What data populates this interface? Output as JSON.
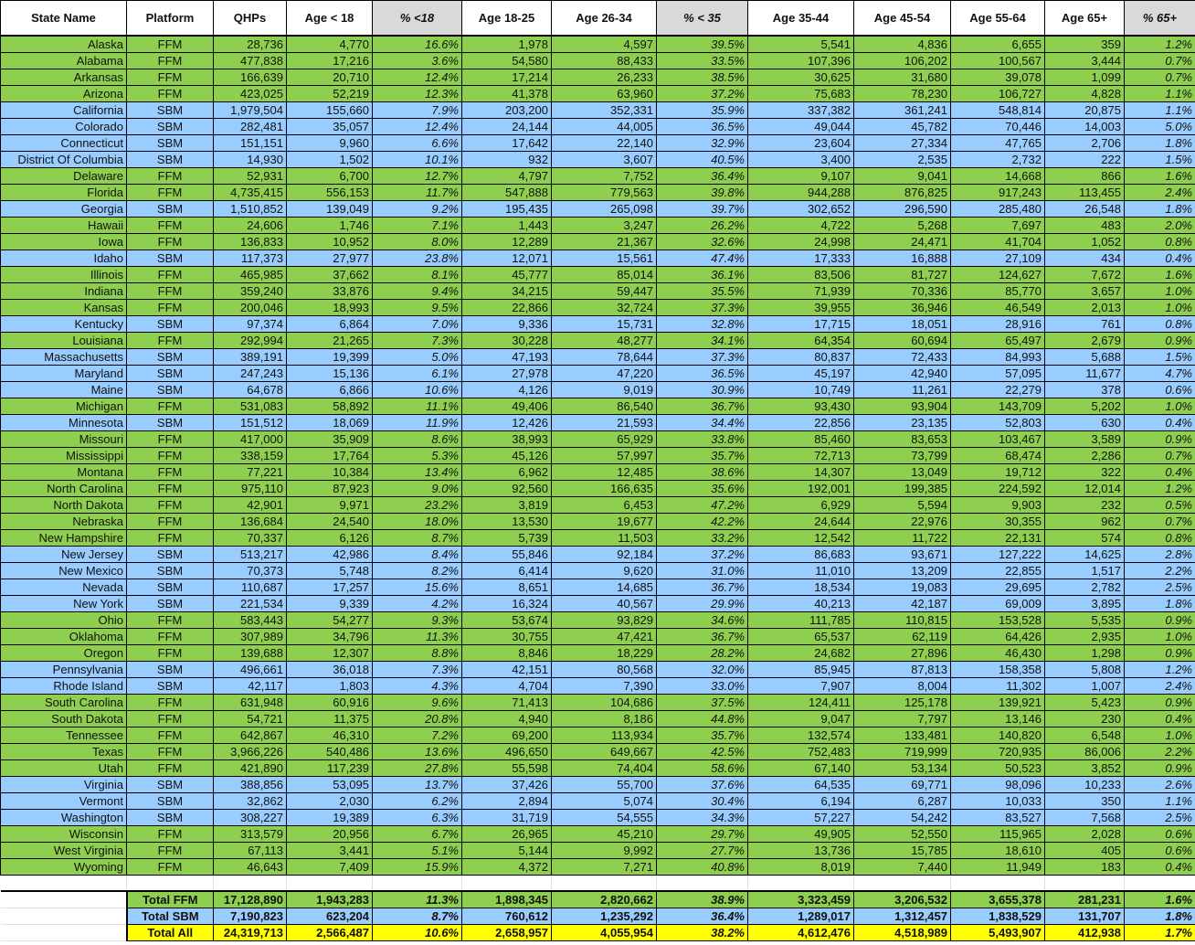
{
  "colors": {
    "FFM": "#8fcf4f",
    "SBM": "#99ccff",
    "total_all": "#ffff00",
    "pct_header": "#d9d9d9"
  },
  "headers": [
    "State Name",
    "Platform",
    "QHPs",
    "Age < 18",
    "% <18",
    "Age 18-25",
    "Age 26-34",
    "% < 35",
    "Age 35-44",
    "Age 45-54",
    "Age 55-64",
    "Age 65+",
    "% 65+"
  ],
  "rows": [
    [
      "Alaska",
      "FFM",
      "28,736",
      "4,770",
      "16.6%",
      "1,978",
      "4,597",
      "39.5%",
      "5,541",
      "4,836",
      "6,655",
      "359",
      "1.2%"
    ],
    [
      "Alabama",
      "FFM",
      "477,838",
      "17,216",
      "3.6%",
      "54,580",
      "88,433",
      "33.5%",
      "107,396",
      "106,202",
      "100,567",
      "3,444",
      "0.7%"
    ],
    [
      "Arkansas",
      "FFM",
      "166,639",
      "20,710",
      "12.4%",
      "17,214",
      "26,233",
      "38.5%",
      "30,625",
      "31,680",
      "39,078",
      "1,099",
      "0.7%"
    ],
    [
      "Arizona",
      "FFM",
      "423,025",
      "52,219",
      "12.3%",
      "41,378",
      "63,960",
      "37.2%",
      "75,683",
      "78,230",
      "106,727",
      "4,828",
      "1.1%"
    ],
    [
      "California",
      "SBM",
      "1,979,504",
      "155,660",
      "7.9%",
      "203,200",
      "352,331",
      "35.9%",
      "337,382",
      "361,241",
      "548,814",
      "20,875",
      "1.1%"
    ],
    [
      "Colorado",
      "SBM",
      "282,481",
      "35,057",
      "12.4%",
      "24,144",
      "44,005",
      "36.5%",
      "49,044",
      "45,782",
      "70,446",
      "14,003",
      "5.0%"
    ],
    [
      "Connecticut",
      "SBM",
      "151,151",
      "9,960",
      "6.6%",
      "17,642",
      "22,140",
      "32.9%",
      "23,604",
      "27,334",
      "47,765",
      "2,706",
      "1.8%"
    ],
    [
      "District Of Columbia",
      "SBM",
      "14,930",
      "1,502",
      "10.1%",
      "932",
      "3,607",
      "40.5%",
      "3,400",
      "2,535",
      "2,732",
      "222",
      "1.5%"
    ],
    [
      "Delaware",
      "FFM",
      "52,931",
      "6,700",
      "12.7%",
      "4,797",
      "7,752",
      "36.4%",
      "9,107",
      "9,041",
      "14,668",
      "866",
      "1.6%"
    ],
    [
      "Florida",
      "FFM",
      "4,735,415",
      "556,153",
      "11.7%",
      "547,888",
      "779,563",
      "39.8%",
      "944,288",
      "876,825",
      "917,243",
      "113,455",
      "2.4%"
    ],
    [
      "Georgia",
      "SBM",
      "1,510,852",
      "139,049",
      "9.2%",
      "195,435",
      "265,098",
      "39.7%",
      "302,652",
      "296,590",
      "285,480",
      "26,548",
      "1.8%"
    ],
    [
      "Hawaii",
      "FFM",
      "24,606",
      "1,746",
      "7.1%",
      "1,443",
      "3,247",
      "26.2%",
      "4,722",
      "5,268",
      "7,697",
      "483",
      "2.0%"
    ],
    [
      "Iowa",
      "FFM",
      "136,833",
      "10,952",
      "8.0%",
      "12,289",
      "21,367",
      "32.6%",
      "24,998",
      "24,471",
      "41,704",
      "1,052",
      "0.8%"
    ],
    [
      "Idaho",
      "SBM",
      "117,373",
      "27,977",
      "23.8%",
      "12,071",
      "15,561",
      "47.4%",
      "17,333",
      "16,888",
      "27,109",
      "434",
      "0.4%"
    ],
    [
      "Illinois",
      "FFM",
      "465,985",
      "37,662",
      "8.1%",
      "45,777",
      "85,014",
      "36.1%",
      "83,506",
      "81,727",
      "124,627",
      "7,672",
      "1.6%"
    ],
    [
      "Indiana",
      "FFM",
      "359,240",
      "33,876",
      "9.4%",
      "34,215",
      "59,447",
      "35.5%",
      "71,939",
      "70,336",
      "85,770",
      "3,657",
      "1.0%"
    ],
    [
      "Kansas",
      "FFM",
      "200,046",
      "18,993",
      "9.5%",
      "22,866",
      "32,724",
      "37.3%",
      "39,955",
      "36,946",
      "46,549",
      "2,013",
      "1.0%"
    ],
    [
      "Kentucky",
      "SBM",
      "97,374",
      "6,864",
      "7.0%",
      "9,336",
      "15,731",
      "32.8%",
      "17,715",
      "18,051",
      "28,916",
      "761",
      "0.8%"
    ],
    [
      "Louisiana",
      "FFM",
      "292,994",
      "21,265",
      "7.3%",
      "30,228",
      "48,277",
      "34.1%",
      "64,354",
      "60,694",
      "65,497",
      "2,679",
      "0.9%"
    ],
    [
      "Massachusetts",
      "SBM",
      "389,191",
      "19,399",
      "5.0%",
      "47,193",
      "78,644",
      "37.3%",
      "80,837",
      "72,433",
      "84,993",
      "5,688",
      "1.5%"
    ],
    [
      "Maryland",
      "SBM",
      "247,243",
      "15,136",
      "6.1%",
      "27,978",
      "47,220",
      "36.5%",
      "45,197",
      "42,940",
      "57,095",
      "11,677",
      "4.7%"
    ],
    [
      "Maine",
      "SBM",
      "64,678",
      "6,866",
      "10.6%",
      "4,126",
      "9,019",
      "30.9%",
      "10,749",
      "11,261",
      "22,279",
      "378",
      "0.6%"
    ],
    [
      "Michigan",
      "FFM",
      "531,083",
      "58,892",
      "11.1%",
      "49,406",
      "86,540",
      "36.7%",
      "93,430",
      "93,904",
      "143,709",
      "5,202",
      "1.0%"
    ],
    [
      "Minnesota",
      "SBM",
      "151,512",
      "18,069",
      "11.9%",
      "12,426",
      "21,593",
      "34.4%",
      "22,856",
      "23,135",
      "52,803",
      "630",
      "0.4%"
    ],
    [
      "Missouri",
      "FFM",
      "417,000",
      "35,909",
      "8.6%",
      "38,993",
      "65,929",
      "33.8%",
      "85,460",
      "83,653",
      "103,467",
      "3,589",
      "0.9%"
    ],
    [
      "Mississippi",
      "FFM",
      "338,159",
      "17,764",
      "5.3%",
      "45,126",
      "57,997",
      "35.7%",
      "72,713",
      "73,799",
      "68,474",
      "2,286",
      "0.7%"
    ],
    [
      "Montana",
      "FFM",
      "77,221",
      "10,384",
      "13.4%",
      "6,962",
      "12,485",
      "38.6%",
      "14,307",
      "13,049",
      "19,712",
      "322",
      "0.4%"
    ],
    [
      "North Carolina",
      "FFM",
      "975,110",
      "87,923",
      "9.0%",
      "92,560",
      "166,635",
      "35.6%",
      "192,001",
      "199,385",
      "224,592",
      "12,014",
      "1.2%"
    ],
    [
      "North Dakota",
      "FFM",
      "42,901",
      "9,971",
      "23.2%",
      "3,819",
      "6,453",
      "47.2%",
      "6,929",
      "5,594",
      "9,903",
      "232",
      "0.5%"
    ],
    [
      "Nebraska",
      "FFM",
      "136,684",
      "24,540",
      "18.0%",
      "13,530",
      "19,677",
      "42.2%",
      "24,644",
      "22,976",
      "30,355",
      "962",
      "0.7%"
    ],
    [
      "New Hampshire",
      "FFM",
      "70,337",
      "6,126",
      "8.7%",
      "5,739",
      "11,503",
      "33.2%",
      "12,542",
      "11,722",
      "22,131",
      "574",
      "0.8%"
    ],
    [
      "New Jersey",
      "SBM",
      "513,217",
      "42,986",
      "8.4%",
      "55,846",
      "92,184",
      "37.2%",
      "86,683",
      "93,671",
      "127,222",
      "14,625",
      "2.8%"
    ],
    [
      "New Mexico",
      "SBM",
      "70,373",
      "5,748",
      "8.2%",
      "6,414",
      "9,620",
      "31.0%",
      "11,010",
      "13,209",
      "22,855",
      "1,517",
      "2.2%"
    ],
    [
      "Nevada",
      "SBM",
      "110,687",
      "17,257",
      "15.6%",
      "8,651",
      "14,685",
      "36.7%",
      "18,534",
      "19,083",
      "29,695",
      "2,782",
      "2.5%"
    ],
    [
      "New York",
      "SBM",
      "221,534",
      "9,339",
      "4.2%",
      "16,324",
      "40,567",
      "29.9%",
      "40,213",
      "42,187",
      "69,009",
      "3,895",
      "1.8%"
    ],
    [
      "Ohio",
      "FFM",
      "583,443",
      "54,277",
      "9.3%",
      "53,674",
      "93,829",
      "34.6%",
      "111,785",
      "110,815",
      "153,528",
      "5,535",
      "0.9%"
    ],
    [
      "Oklahoma",
      "FFM",
      "307,989",
      "34,796",
      "11.3%",
      "30,755",
      "47,421",
      "36.7%",
      "65,537",
      "62,119",
      "64,426",
      "2,935",
      "1.0%"
    ],
    [
      "Oregon",
      "FFM",
      "139,688",
      "12,307",
      "8.8%",
      "8,846",
      "18,229",
      "28.2%",
      "24,682",
      "27,896",
      "46,430",
      "1,298",
      "0.9%"
    ],
    [
      "Pennsylvania",
      "SBM",
      "496,661",
      "36,018",
      "7.3%",
      "42,151",
      "80,568",
      "32.0%",
      "85,945",
      "87,813",
      "158,358",
      "5,808",
      "1.2%"
    ],
    [
      "Rhode Island",
      "SBM",
      "42,117",
      "1,803",
      "4.3%",
      "4,704",
      "7,390",
      "33.0%",
      "7,907",
      "8,004",
      "11,302",
      "1,007",
      "2.4%"
    ],
    [
      "South Carolina",
      "FFM",
      "631,948",
      "60,916",
      "9.6%",
      "71,413",
      "104,686",
      "37.5%",
      "124,411",
      "125,178",
      "139,921",
      "5,423",
      "0.9%"
    ],
    [
      "South Dakota",
      "FFM",
      "54,721",
      "11,375",
      "20.8%",
      "4,940",
      "8,186",
      "44.8%",
      "9,047",
      "7,797",
      "13,146",
      "230",
      "0.4%"
    ],
    [
      "Tennessee",
      "FFM",
      "642,867",
      "46,310",
      "7.2%",
      "69,200",
      "113,934",
      "35.7%",
      "132,574",
      "133,481",
      "140,820",
      "6,548",
      "1.0%"
    ],
    [
      "Texas",
      "FFM",
      "3,966,226",
      "540,486",
      "13.6%",
      "496,650",
      "649,667",
      "42.5%",
      "752,483",
      "719,999",
      "720,935",
      "86,006",
      "2.2%"
    ],
    [
      "Utah",
      "FFM",
      "421,890",
      "117,239",
      "27.8%",
      "55,598",
      "74,404",
      "58.6%",
      "67,140",
      "53,134",
      "50,523",
      "3,852",
      "0.9%"
    ],
    [
      "Virginia",
      "SBM",
      "388,856",
      "53,095",
      "13.7%",
      "37,426",
      "55,700",
      "37.6%",
      "64,535",
      "69,771",
      "98,096",
      "10,233",
      "2.6%"
    ],
    [
      "Vermont",
      "SBM",
      "32,862",
      "2,030",
      "6.2%",
      "2,894",
      "5,074",
      "30.4%",
      "6,194",
      "6,287",
      "10,033",
      "350",
      "1.1%"
    ],
    [
      "Washington",
      "SBM",
      "308,227",
      "19,389",
      "6.3%",
      "31,719",
      "54,555",
      "34.3%",
      "57,227",
      "54,242",
      "83,527",
      "7,568",
      "2.5%"
    ],
    [
      "Wisconsin",
      "FFM",
      "313,579",
      "20,956",
      "6.7%",
      "26,965",
      "45,210",
      "29.7%",
      "49,905",
      "52,550",
      "115,965",
      "2,028",
      "0.6%"
    ],
    [
      "West Virginia",
      "FFM",
      "67,113",
      "3,441",
      "5.1%",
      "5,144",
      "9,992",
      "27.7%",
      "13,736",
      "15,785",
      "18,610",
      "405",
      "0.6%"
    ],
    [
      "Wyoming",
      "FFM",
      "46,643",
      "7,409",
      "15.9%",
      "4,372",
      "7,271",
      "40.8%",
      "8,019",
      "7,440",
      "11,949",
      "183",
      "0.4%"
    ]
  ],
  "totals": [
    {
      "kind": "FFM",
      "cells": [
        "Total FFM",
        "17,128,890",
        "1,943,283",
        "11.3%",
        "1,898,345",
        "2,820,662",
        "38.9%",
        "3,323,459",
        "3,206,532",
        "3,655,378",
        "281,231",
        "1.6%"
      ]
    },
    {
      "kind": "SBM",
      "cells": [
        "Total SBM",
        "7,190,823",
        "623,204",
        "8.7%",
        "760,612",
        "1,235,292",
        "36.4%",
        "1,289,017",
        "1,312,457",
        "1,838,529",
        "131,707",
        "1.8%"
      ]
    },
    {
      "kind": "all",
      "cells": [
        "Total All",
        "24,319,713",
        "2,566,487",
        "10.6%",
        "2,658,957",
        "4,055,954",
        "38.2%",
        "4,612,476",
        "4,518,989",
        "5,493,907",
        "412,938",
        "1.7%"
      ]
    }
  ]
}
